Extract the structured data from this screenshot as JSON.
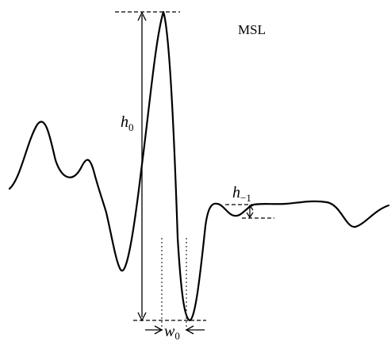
{
  "diagram": {
    "title": "MSL",
    "labels": {
      "h0": {
        "base": "h",
        "sub": "0"
      },
      "h_minus1": {
        "base": "h",
        "sub": "−1"
      },
      "w0": {
        "base": "w",
        "sub": "0"
      }
    }
  }
}
